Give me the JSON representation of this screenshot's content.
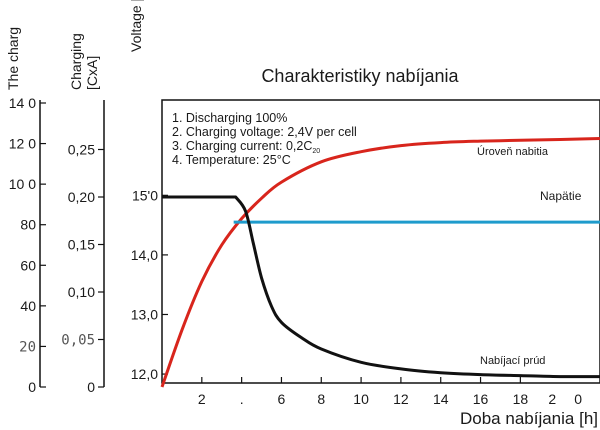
{
  "chart_data": {
    "type": "line",
    "title": "Charakteristiky nabíjania",
    "xlabel": "Doba nabíjania [h]",
    "x_ticks": [
      "2",
      ".",
      "6",
      "8",
      "10",
      "12",
      "14",
      "16",
      "18",
      "2",
      "0"
    ],
    "xlim": [
      0,
      22
    ],
    "axes": [
      {
        "label": "The charg",
        "ticks": [
          {
            "label": "0",
            "value": 0
          },
          {
            "label": "20",
            "value": 20
          },
          {
            "label": "40",
            "value": 40
          },
          {
            "label": "60",
            "value": 60
          },
          {
            "label": "80",
            "value": 80
          },
          {
            "label": "10 0",
            "value": 100
          },
          {
            "label": "12 0",
            "value": 120
          },
          {
            "label": "14 0",
            "value": 140
          }
        ],
        "range": [
          0,
          140
        ]
      },
      {
        "label": "Charging [CxA]",
        "ticks": [
          {
            "label": "0",
            "value": 0
          },
          {
            "label": "0,05",
            "value": 0.05
          },
          {
            "label": "0,10",
            "value": 0.1
          },
          {
            "label": "0,15",
            "value": 0.15
          },
          {
            "label": "0,20",
            "value": 0.2
          },
          {
            "label": "0,25",
            "value": 0.25
          }
        ],
        "range": [
          0,
          0.3
        ]
      },
      {
        "label": "Voltage [",
        "ticks": [
          {
            "label": "12,0",
            "value": 12.0
          },
          {
            "label": "13,0",
            "value": 13.0
          },
          {
            "label": "14,0",
            "value": 14.0
          },
          {
            "label": "15'0",
            "value": 15.0
          }
        ],
        "range": [
          11.85,
          16.6
        ]
      }
    ],
    "notes": [
      "1. Discharging 100%",
      "2. Charging voltage: 2,4V per cell",
      "3. Charging current: 0,2C",
      "4. Temperature: 25°C"
    ],
    "note_sub": "20",
    "series": [
      {
        "name": "Úroveň nabitia",
        "color": "#d8251c",
        "axis": 0,
        "x": [
          0,
          1,
          2,
          3,
          4,
          5,
          6,
          8,
          10,
          12,
          14,
          16,
          18,
          20,
          22
        ],
        "y": [
          0,
          28,
          52,
          70,
          83,
          93,
          101,
          111,
          116,
          119,
          120.5,
          121.2,
          121.6,
          122,
          122.5
        ]
      },
      {
        "name": "Napätie",
        "color": "#1e9bcc",
        "axis": 2,
        "x": [
          3.6,
          22
        ],
        "y": [
          14.55,
          14.55
        ]
      },
      {
        "name": "Nabíjací prúd",
        "color": "#111111",
        "axis": 1,
        "x": [
          0,
          3.7,
          4.2,
          4.6,
          5,
          5.5,
          6,
          7,
          8,
          10,
          12,
          14,
          16,
          18,
          20,
          22
        ],
        "y": [
          0.2,
          0.2,
          0.185,
          0.15,
          0.115,
          0.085,
          0.068,
          0.052,
          0.04,
          0.026,
          0.019,
          0.015,
          0.013,
          0.012,
          0.011,
          0.011
        ]
      }
    ]
  }
}
